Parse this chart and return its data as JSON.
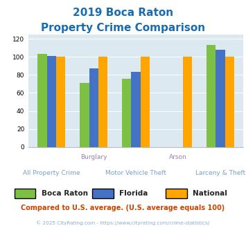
{
  "title_line1": "2019 Boca Raton",
  "title_line2": "Property Crime Comparison",
  "categories": [
    "All Property Crime",
    "Burglary",
    "Motor Vehicle Theft",
    "Arson",
    "Larceny & Theft"
  ],
  "boca_raton": [
    103,
    71,
    76,
    0,
    113
  ],
  "florida": [
    101,
    87,
    83,
    0,
    108
  ],
  "national": [
    100,
    100,
    100,
    100,
    100
  ],
  "arson_missing": [
    true,
    false,
    false,
    true,
    false
  ],
  "colors": {
    "boca_raton": "#7dc142",
    "florida": "#4472c4",
    "national": "#ffa500"
  },
  "ylim": [
    0,
    125
  ],
  "yticks": [
    0,
    20,
    40,
    60,
    80,
    100,
    120
  ],
  "note": "Compared to U.S. average. (U.S. average equals 100)",
  "footer": "© 2025 CityRating.com - https://www.cityrating.com/crime-statistics/",
  "bg_color": "#dde9f0",
  "title_color": "#1a6cb0",
  "label_color_row1": "#9b7cb6",
  "label_color_row2": "#7a9fc4",
  "note_color": "#cc4400",
  "footer_color": "#8aadcc",
  "bar_width": 0.22
}
